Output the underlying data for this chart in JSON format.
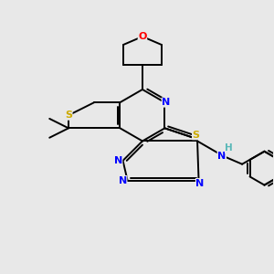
{
  "background_color": "#e8e8e8",
  "atom_colors": {
    "N": "#0000ff",
    "S": "#ccaa00",
    "O": "#ff0000",
    "H": "#5ab8b8"
  },
  "figsize": [
    3.0,
    3.0
  ],
  "dpi": 100
}
